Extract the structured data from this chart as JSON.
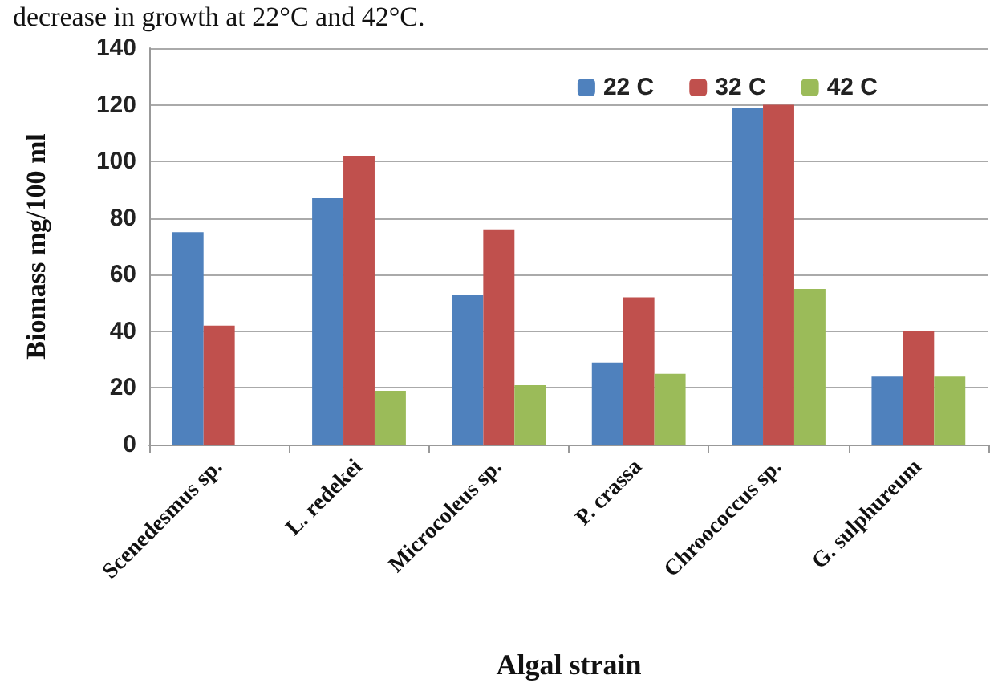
{
  "chart_data": {
    "type": "bar",
    "annotations": [
      "decrease in growth at 22°C and 42°C."
    ],
    "xlabel": "Algal strain",
    "ylabel": "Biomass mg/100 ml",
    "categories": [
      "Scenedesmus sp.",
      "L. redekei",
      "Microcoleus sp.",
      "P. crassa",
      "Chroococcus sp.",
      "G. sulphureum"
    ],
    "series": [
      {
        "name": "22 C",
        "color": "#4f81bd",
        "values": [
          75,
          87,
          53,
          29,
          119,
          24
        ]
      },
      {
        "name": "32 C",
        "color": "#c0504d",
        "values": [
          42,
          102,
          76,
          52,
          120,
          40
        ]
      },
      {
        "name": "42 C",
        "color": "#9bbb59",
        "values": [
          null,
          19,
          21,
          25,
          55,
          24
        ]
      }
    ],
    "ylim": [
      0,
      140
    ],
    "yticks": [
      0,
      20,
      40,
      60,
      80,
      100,
      120,
      140
    ],
    "grid": "y",
    "legend": "top right"
  }
}
